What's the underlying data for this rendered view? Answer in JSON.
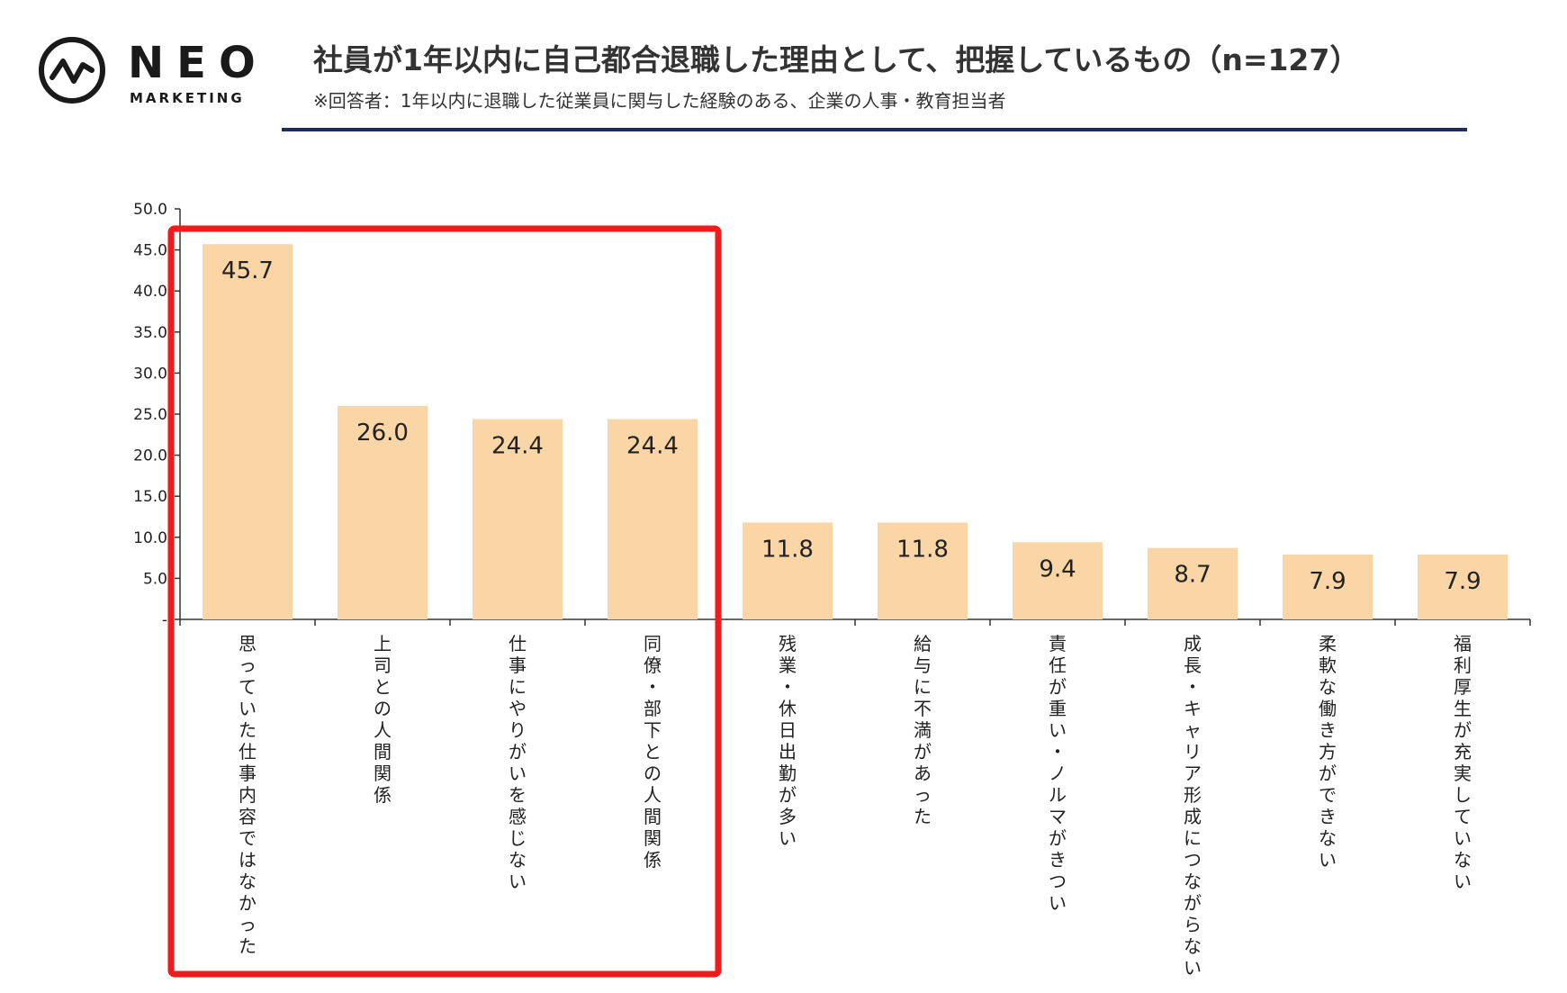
{
  "brand": {
    "name": "NEO",
    "sub": "MARKETING",
    "logo_icon": "wave-circle-icon"
  },
  "header": {
    "title": "社員が1年以内に自己都合退職した理由として、把握しているもの（n=127）",
    "note": "※回答者：1年以内に退職した従業員に関与した経験のある、企業の人事・教育担当者"
  },
  "colors": {
    "bar": "#fad5a5",
    "highlight": "#f21a1a",
    "rule": "#1f2d5c",
    "axis": "#333333"
  },
  "chart_data": {
    "type": "bar",
    "title": "",
    "xlabel": "",
    "ylabel": "",
    "ylim": [
      0,
      50
    ],
    "yticks": [
      "-",
      "5.0",
      "10.0",
      "15.0",
      "20.0",
      "25.0",
      "30.0",
      "35.0",
      "40.0",
      "45.0",
      "50.0"
    ],
    "categories": [
      "思っていた仕事内容ではなかった",
      "上司との人間関係",
      "仕事にやりがいを感じない",
      "同僚・部下との人間関係",
      "残業・休日出勤が多い",
      "給与に不満があった",
      "責任が重い・ノルマがきつい",
      "成長・キャリア形成につながらない",
      "柔軟な働き方ができない",
      "福利厚生が充実していない"
    ],
    "values": [
      45.7,
      26.0,
      24.4,
      24.4,
      11.8,
      11.8,
      9.4,
      8.7,
      7.9,
      7.9
    ],
    "value_labels": [
      "45.7",
      "26.0",
      "24.4",
      "24.4",
      "11.8",
      "11.8",
      "9.4",
      "8.7",
      "7.9",
      "7.9"
    ],
    "grid": false,
    "legend": "none",
    "highlight_range": [
      0,
      3
    ]
  }
}
